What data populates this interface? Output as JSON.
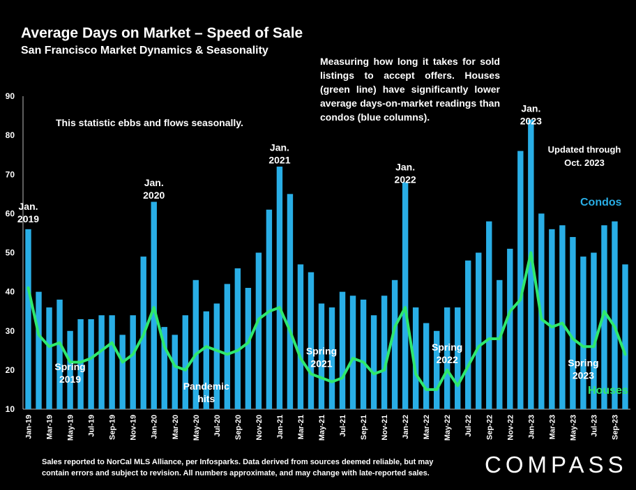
{
  "title": "Average Days on Market – Speed of Sale",
  "subtitle": "San Francisco Market Dynamics & Seasonality",
  "note": "Measuring how long it takes for sold listings to accept offers. Houses (green line) have significantly lower average days-on-market readings than condos (blue columns).",
  "seasonal_note": "This statistic ebbs and flows seasonally.",
  "updated_line1": "Updated through",
  "updated_line2": "Oct. 2023",
  "condos_label": "Condos",
  "houses_label": "Houses",
  "footnote_line1": "Sales reported to NorCal MLS Alliance, per Infosparks. Data derived from sources deemed reliable, but may",
  "footnote_line2": "contain errors and subject to revision. All numbers approximate, and may change with late-reported sales.",
  "logo": "COMPASS",
  "colors": {
    "condos": "#29aee6",
    "houses": "#2ee86e",
    "background": "#000000"
  },
  "chart_data": {
    "type": "bar",
    "ylim": [
      10,
      90
    ],
    "yticks": [
      10,
      20,
      30,
      40,
      50,
      60,
      70,
      80,
      90
    ],
    "grid": false,
    "x_tick_labels": [
      "Jan-19",
      "Mar-19",
      "May-19",
      "Jul-19",
      "Sep-19",
      "Nov-19",
      "Jan-20",
      "Mar-20",
      "May-20",
      "Jul-20",
      "Sep-20",
      "Nov-20",
      "Jan-21",
      "Mar-21",
      "May-21",
      "Jul-21",
      "Sep-21",
      "Nov-21",
      "Jan-22",
      "Mar-22",
      "May-22",
      "Jul-22",
      "Sep-22",
      "Nov-22",
      "Jan-23",
      "Mar-23",
      "May-23",
      "Jul-23",
      "Sep-23"
    ],
    "categories": [
      "Jan-19",
      "Feb-19",
      "Mar-19",
      "Apr-19",
      "May-19",
      "Jun-19",
      "Jul-19",
      "Aug-19",
      "Sep-19",
      "Oct-19",
      "Nov-19",
      "Dec-19",
      "Jan-20",
      "Feb-20",
      "Mar-20",
      "Apr-20",
      "May-20",
      "Jun-20",
      "Jul-20",
      "Aug-20",
      "Sep-20",
      "Oct-20",
      "Nov-20",
      "Dec-20",
      "Jan-21",
      "Feb-21",
      "Mar-21",
      "Apr-21",
      "May-21",
      "Jun-21",
      "Jul-21",
      "Aug-21",
      "Sep-21",
      "Oct-21",
      "Nov-21",
      "Dec-21",
      "Jan-22",
      "Feb-22",
      "Mar-22",
      "Apr-22",
      "May-22",
      "Jun-22",
      "Jul-22",
      "Aug-22",
      "Sep-22",
      "Oct-22",
      "Nov-22",
      "Dec-22",
      "Jan-23",
      "Feb-23",
      "Mar-23",
      "Apr-23",
      "May-23",
      "Jun-23",
      "Jul-23",
      "Aug-23",
      "Sep-23",
      "Oct-23"
    ],
    "series": [
      {
        "name": "Condos",
        "type": "bar",
        "values": [
          56,
          40,
          36,
          38,
          30,
          33,
          33,
          34,
          34,
          29,
          34,
          49,
          63,
          31,
          29,
          34,
          43,
          35,
          37,
          42,
          46,
          41,
          50,
          61,
          72,
          65,
          47,
          45,
          37,
          36,
          40,
          39,
          38,
          34,
          39,
          43,
          68,
          36,
          32,
          30,
          36,
          36,
          48,
          50,
          58,
          43,
          51,
          76,
          84,
          60,
          56,
          57,
          54,
          49,
          50,
          57,
          58,
          47
        ]
      },
      {
        "name": "Houses",
        "type": "line",
        "values": [
          41,
          29,
          26,
          27,
          22,
          22,
          23,
          25,
          27,
          22,
          24,
          29,
          36,
          26,
          21,
          20,
          24,
          26,
          25,
          24,
          25,
          27,
          33,
          35,
          36,
          30,
          23,
          19,
          18,
          17,
          18,
          23,
          22,
          19,
          20,
          31,
          36,
          19,
          15,
          15,
          20,
          16,
          21,
          26,
          28,
          28,
          35,
          38,
          50,
          33,
          31,
          32,
          28,
          26,
          26,
          35,
          31,
          24
        ]
      }
    ],
    "annotations": [
      {
        "label": "Jan.\n2019",
        "index": 0,
        "y": 61
      },
      {
        "label": "Jan.\n2020",
        "index": 12,
        "y": 67
      },
      {
        "label": "Jan.\n2021",
        "index": 24,
        "y": 76
      },
      {
        "label": "Jan.\n2022",
        "index": 36,
        "y": 71
      },
      {
        "label": "Jan.\n2023",
        "index": 48,
        "y": 86
      },
      {
        "label": "Spring\n2019",
        "index": 4,
        "y": 20
      },
      {
        "label": "Pandemic\nhits",
        "index": 17,
        "y": 15
      },
      {
        "label": "Spring\n2021",
        "index": 28,
        "y": 24
      },
      {
        "label": "Spring\n2022",
        "index": 40,
        "y": 25
      },
      {
        "label": "Spring\n2023",
        "index": 53,
        "y": 21
      }
    ]
  }
}
